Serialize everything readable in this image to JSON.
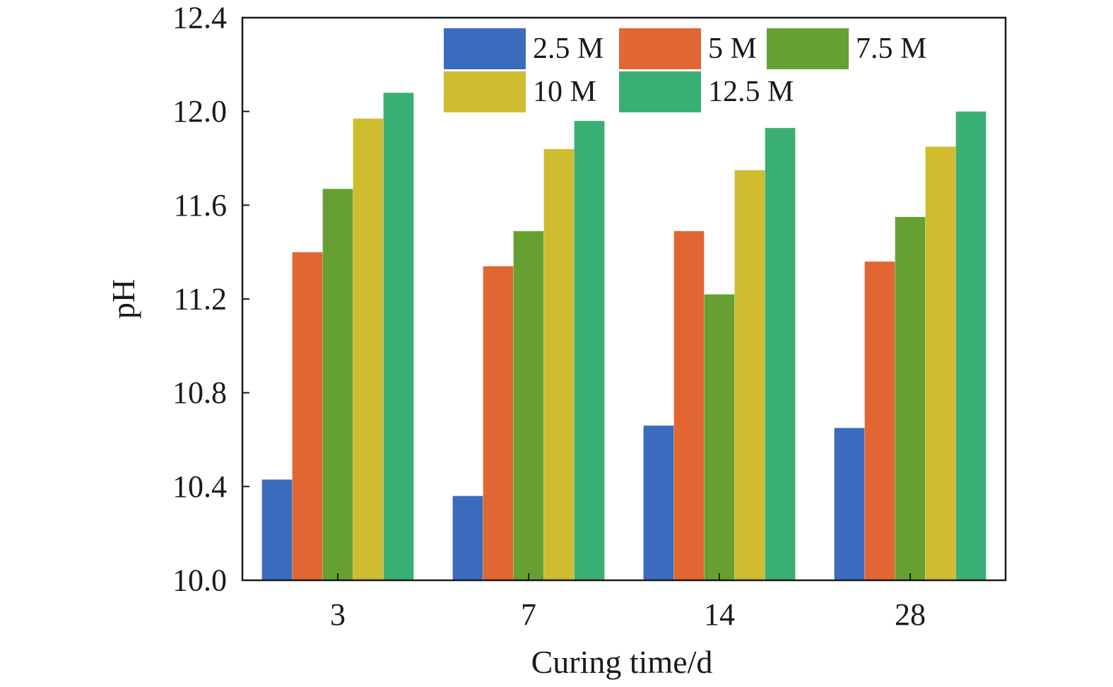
{
  "chart_data": {
    "type": "bar",
    "title": "",
    "xlabel": "Curing time/d",
    "ylabel": "pH",
    "categories": [
      "3",
      "7",
      "14",
      "28"
    ],
    "ylim": [
      10.0,
      12.4
    ],
    "yticks": [
      "10.0",
      "10.4",
      "10.8",
      "11.2",
      "11.6",
      "12.0",
      "12.4"
    ],
    "grid": false,
    "legend_position": "top-right",
    "series": [
      {
        "name": "2.5 M",
        "color": "#3a6bbf",
        "values": [
          10.43,
          10.36,
          10.66,
          10.65
        ]
      },
      {
        "name": "5 M",
        "color": "#e26633",
        "values": [
          11.4,
          11.34,
          11.49,
          11.36
        ]
      },
      {
        "name": "7.5 M",
        "color": "#66a032",
        "values": [
          11.67,
          11.49,
          11.22,
          11.55
        ]
      },
      {
        "name": "10 M",
        "color": "#cfbd2f",
        "values": [
          11.97,
          11.84,
          11.75,
          11.85
        ]
      },
      {
        "name": "12.5 M",
        "color": "#3aaf74",
        "values": [
          12.08,
          11.96,
          11.93,
          12.0
        ]
      }
    ]
  }
}
